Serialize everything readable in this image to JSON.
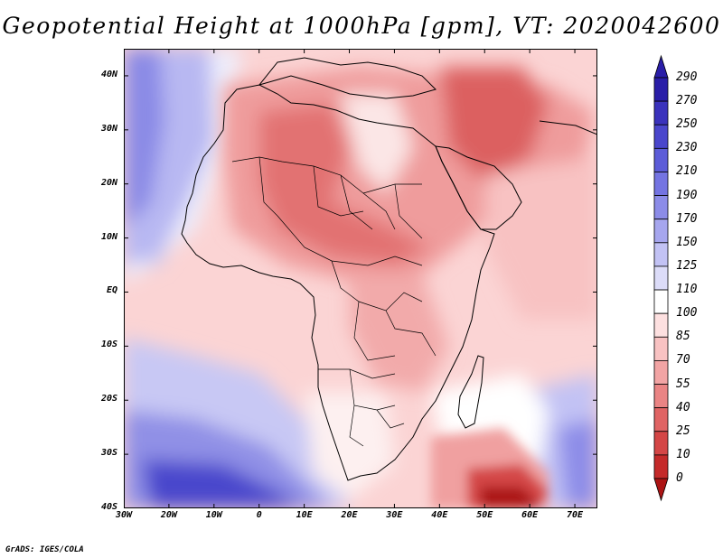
{
  "title": "Geopotential Height at 1000hPa [gpm], VT: 2020042600",
  "credit": "GrADS: IGES/COLA",
  "map": {
    "variable": "Geopotential Height",
    "level": "1000hPa",
    "units": "gpm",
    "valid_time": "2020042600",
    "lon_range": [
      -30,
      75
    ],
    "lat_range": [
      -40,
      45
    ]
  },
  "axes": {
    "y_ticks": [
      {
        "label": "40N",
        "lat": 40
      },
      {
        "label": "30N",
        "lat": 30
      },
      {
        "label": "20N",
        "lat": 20
      },
      {
        "label": "10N",
        "lat": 10
      },
      {
        "label": "EQ",
        "lat": 0
      },
      {
        "label": "10S",
        "lat": -10
      },
      {
        "label": "20S",
        "lat": -20
      },
      {
        "label": "30S",
        "lat": -30
      },
      {
        "label": "40S",
        "lat": -40
      }
    ],
    "x_ticks": [
      {
        "label": "30W",
        "lon": -30
      },
      {
        "label": "20W",
        "lon": -20
      },
      {
        "label": "10W",
        "lon": -10
      },
      {
        "label": "0",
        "lon": 0
      },
      {
        "label": "10E",
        "lon": 10
      },
      {
        "label": "20E",
        "lon": 20
      },
      {
        "label": "30E",
        "lon": 30
      },
      {
        "label": "40E",
        "lon": 40
      },
      {
        "label": "50E",
        "lon": 50
      },
      {
        "label": "60E",
        "lon": 60
      },
      {
        "label": "70E",
        "lon": 70
      }
    ]
  },
  "colorbar": {
    "labels": [
      "290",
      "270",
      "250",
      "230",
      "210",
      "190",
      "170",
      "150",
      "125",
      "110",
      "100",
      "85",
      "70",
      "55",
      "40",
      "25",
      "10",
      "0"
    ],
    "colors": [
      "#2a1ea8",
      "#3a32bc",
      "#4a46cc",
      "#5c5cd8",
      "#7474e2",
      "#8c8ce8",
      "#a6a6ee",
      "#c2c2f4",
      "#dcdcf8",
      "#ffffff",
      "#fde0e0",
      "#f8c2c2",
      "#f2a4a4",
      "#ea8484",
      "#e06464",
      "#d44646",
      "#c42a2a",
      "#ac1414"
    ]
  }
}
